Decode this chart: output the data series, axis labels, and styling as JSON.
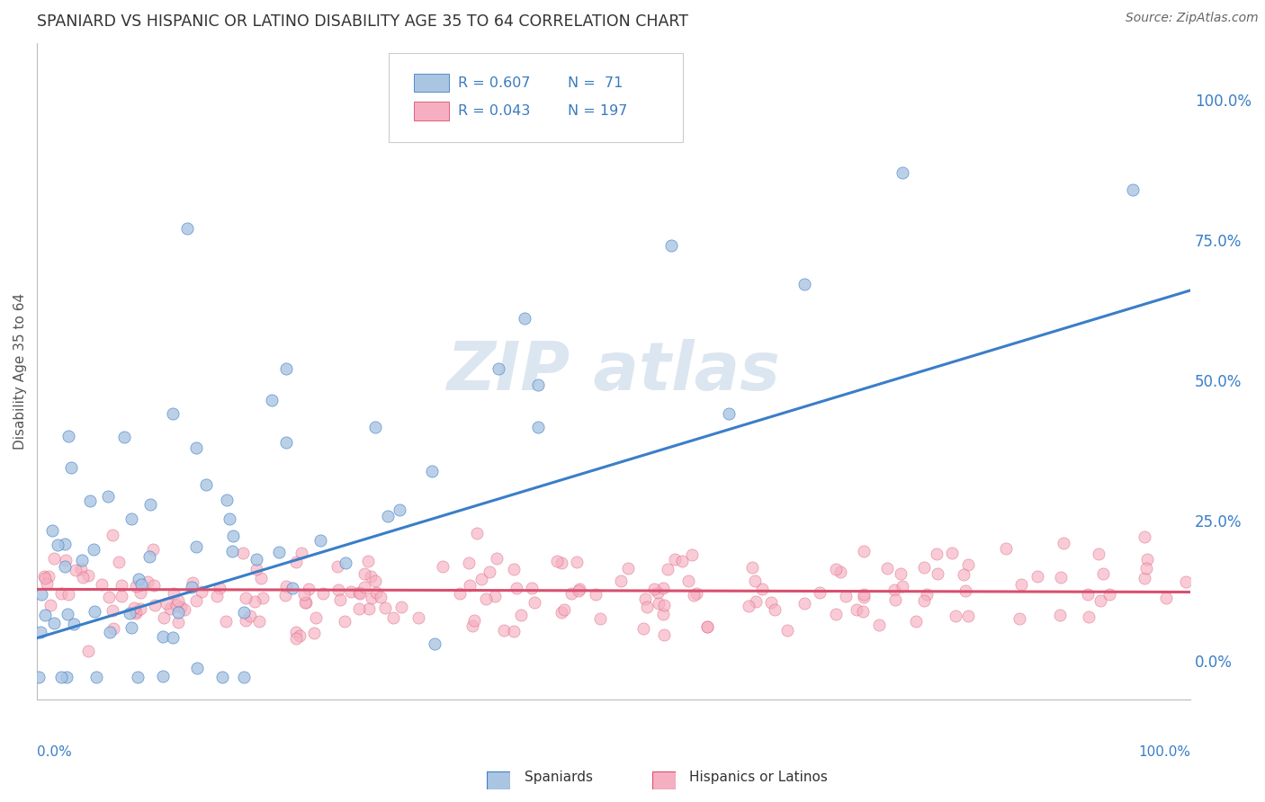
{
  "title": "SPANIARD VS HISPANIC OR LATINO DISABILITY AGE 35 TO 64 CORRELATION CHART",
  "source": "Source: ZipAtlas.com",
  "ylabel": "Disability Age 35 to 64",
  "yticks": [
    "0.0%",
    "25.0%",
    "50.0%",
    "75.0%",
    "100.0%"
  ],
  "ytick_vals": [
    0.0,
    0.25,
    0.5,
    0.75,
    1.0
  ],
  "blue_color": "#aac5e2",
  "pink_color": "#f5afc0",
  "blue_line_color": "#3a7ec8",
  "pink_line_color": "#d94f6e",
  "grid_color": "#cccccc",
  "legend_text_color": "#3a7bbf",
  "blue_N": 71,
  "pink_N": 197,
  "blue_R": 0.607,
  "pink_R": 0.043,
  "watermark_color": "#dce6f0"
}
